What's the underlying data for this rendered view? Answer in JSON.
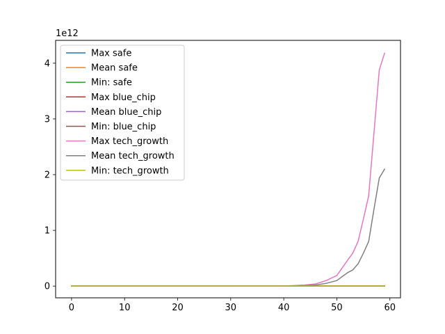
{
  "chart_data": {
    "type": "line",
    "scale_label": "1e12",
    "xlim": [
      -3,
      62
    ],
    "ylim": [
      -0.21,
      4.41
    ],
    "x_ticks": [
      0,
      10,
      20,
      30,
      40,
      50,
      60
    ],
    "y_ticks": [
      0,
      1,
      2,
      3,
      4
    ],
    "x_tick_labels": [
      "0",
      "10",
      "20",
      "30",
      "40",
      "50",
      "60"
    ],
    "y_tick_labels": [
      "0",
      "1",
      "2",
      "3",
      "4"
    ],
    "legend_position": "upper-left",
    "grid": false,
    "series": [
      {
        "name": "Max safe",
        "color": "#1f77b4",
        "x": [
          0,
          59
        ],
        "y": [
          0,
          0
        ]
      },
      {
        "name": "Mean safe",
        "color": "#ff7f0e",
        "x": [
          0,
          59
        ],
        "y": [
          0,
          0
        ]
      },
      {
        "name": "Min: safe",
        "color": "#2ca02c",
        "x": [
          0,
          59
        ],
        "y": [
          0,
          0
        ]
      },
      {
        "name": "Max blue_chip",
        "color": "#d62728",
        "x": [
          0,
          59
        ],
        "y": [
          0,
          0
        ]
      },
      {
        "name": "Mean blue_chip",
        "color": "#9467bd",
        "x": [
          0,
          59
        ],
        "y": [
          0,
          0
        ]
      },
      {
        "name": "Min: blue_chip",
        "color": "#8c564b",
        "x": [
          0,
          59
        ],
        "y": [
          0,
          0
        ]
      },
      {
        "name": "Max tech_growth",
        "color": "#e377c2",
        "x": [
          0,
          30,
          40,
          42,
          44,
          46,
          48,
          50,
          52,
          53,
          54,
          55,
          56,
          57,
          58,
          59
        ],
        "y": [
          0,
          0,
          0.003,
          0.01,
          0.02,
          0.04,
          0.1,
          0.19,
          0.46,
          0.59,
          0.8,
          1.2,
          1.62,
          2.75,
          3.88,
          4.18
        ]
      },
      {
        "name": "Mean tech_growth",
        "color": "#7f7f7f",
        "x": [
          0,
          30,
          40,
          44,
          46,
          48,
          50,
          52,
          53,
          54,
          55,
          56,
          57,
          58,
          59
        ],
        "y": [
          0,
          0,
          0.002,
          0.01,
          0.02,
          0.05,
          0.1,
          0.24,
          0.29,
          0.4,
          0.59,
          0.8,
          1.38,
          1.94,
          2.1
        ]
      },
      {
        "name": "Min: tech_growth",
        "color": "#bcbd22",
        "x": [
          0,
          59
        ],
        "y": [
          0,
          0
        ]
      }
    ]
  }
}
